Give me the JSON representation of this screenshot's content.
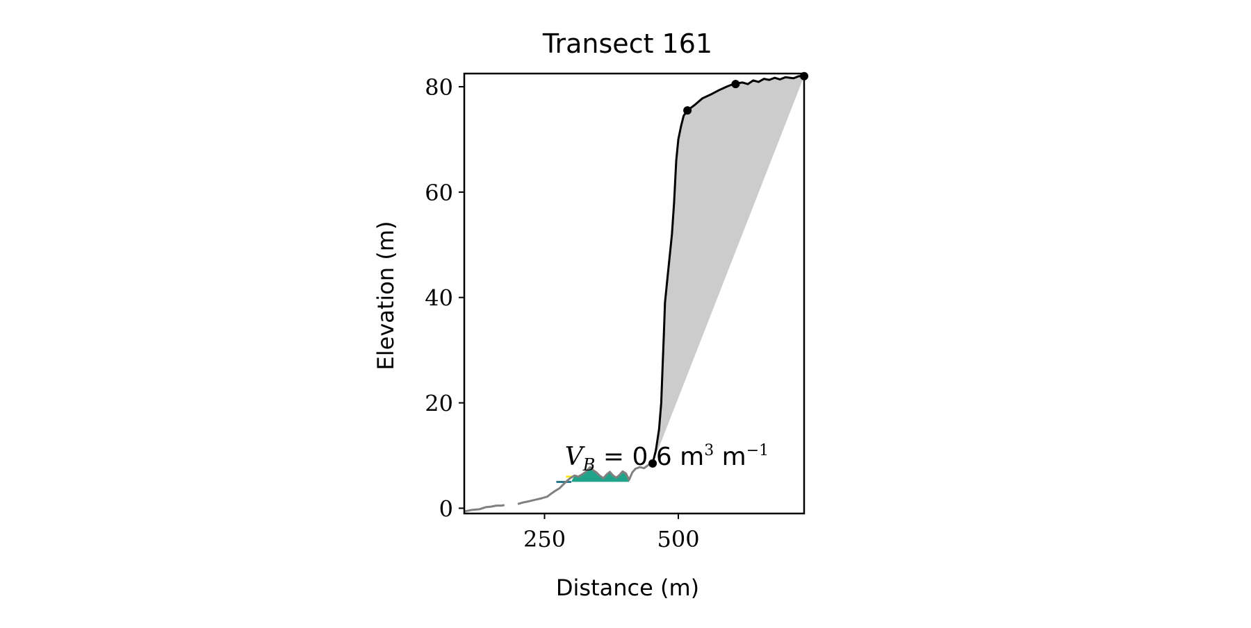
{
  "chart_data": {
    "type": "line",
    "title": "Transect 161",
    "xlabel": "Distance (m)",
    "ylabel": "Elevation (m)",
    "xlim": [
      100,
      735
    ],
    "ylim": [
      -1,
      82.5
    ],
    "xticks": [
      250,
      500
    ],
    "yticks": [
      0,
      20,
      40,
      60,
      80
    ],
    "grid": false,
    "legend": "none",
    "annotation": {
      "prefix": "V",
      "subscript": "B",
      "equals": "=",
      "value": "0.6",
      "unit": "m",
      "sup1": "3",
      "unit2": "m",
      "sup2": "−1",
      "x": 288,
      "y": 8.2
    },
    "series": [
      {
        "role": "profile-gray-low",
        "color": "#808080",
        "segments": [
          [
            [
              100,
              -0.6
            ],
            [
              115,
              -0.3
            ],
            [
              128,
              -0.2
            ],
            [
              140,
              0.2
            ],
            [
              150,
              0.3
            ],
            [
              160,
              0.5
            ],
            [
              170,
              0.5
            ],
            [
              175,
              0.6
            ]
          ],
          [
            [
              200,
              0.8
            ],
            [
              210,
              1.1
            ],
            [
              220,
              1.3
            ],
            [
              232,
              1.6
            ],
            [
              245,
              1.9
            ],
            [
              255,
              2.2
            ],
            [
              263,
              2.8
            ],
            [
              270,
              3.3
            ],
            [
              278,
              3.8
            ],
            [
              285,
              4.5
            ],
            [
              292,
              5.2
            ],
            [
              298,
              5.7
            ],
            [
              306,
              6.2
            ],
            [
              313,
              6.0
            ],
            [
              320,
              6.4
            ],
            [
              328,
              7.0
            ],
            [
              335,
              7.8
            ],
            [
              341,
              7.2
            ],
            [
              347,
              6.8
            ],
            [
              353,
              6.2
            ],
            [
              360,
              5.7
            ],
            [
              366,
              6.4
            ],
            [
              372,
              6.9
            ],
            [
              378,
              6.2
            ],
            [
              384,
              5.8
            ],
            [
              390,
              6.3
            ],
            [
              396,
              7.0
            ],
            [
              402,
              6.6
            ],
            [
              408,
              5.4
            ],
            [
              414,
              6.8
            ],
            [
              420,
              7.5
            ],
            [
              428,
              7.8
            ],
            [
              436,
              7.6
            ],
            [
              444,
              8.2
            ],
            [
              452,
              8.5
            ]
          ]
        ]
      },
      {
        "role": "profile-black-cliff",
        "color": "#000000",
        "points": [
          [
            452,
            8.5
          ],
          [
            458,
            11
          ],
          [
            464,
            15
          ],
          [
            468,
            20
          ],
          [
            471,
            28
          ],
          [
            473,
            33
          ],
          [
            475,
            39
          ],
          [
            480,
            44
          ],
          [
            484,
            48
          ],
          [
            488,
            52
          ],
          [
            492,
            58
          ],
          [
            496,
            66
          ],
          [
            500,
            70
          ],
          [
            505,
            72.5
          ],
          [
            510,
            74.5
          ],
          [
            517,
            75.5
          ],
          [
            530,
            76.5
          ],
          [
            545,
            77.8
          ],
          [
            560,
            78.5
          ],
          [
            575,
            79.3
          ],
          [
            590,
            80.0
          ],
          [
            605,
            80.6
          ],
          [
            620,
            80.8
          ],
          [
            630,
            80.5
          ],
          [
            640,
            81.2
          ],
          [
            650,
            80.9
          ],
          [
            660,
            81.5
          ],
          [
            670,
            81.3
          ],
          [
            680,
            81.7
          ],
          [
            690,
            81.4
          ],
          [
            700,
            81.8
          ],
          [
            715,
            81.6
          ],
          [
            725,
            82.0
          ],
          [
            735,
            82.0
          ]
        ]
      }
    ],
    "markers": [
      [
        452,
        8.5
      ],
      [
        517,
        75.5
      ],
      [
        607,
        80.5
      ],
      [
        735,
        82.0
      ]
    ],
    "volume_fill": {
      "color": "#cccccc",
      "baseline": [
        [
          452,
          8.5
        ],
        [
          735,
          82.0
        ]
      ]
    },
    "bar_fill": {
      "color": "#21a38b",
      "base": 5.0,
      "x_range": [
        300,
        408
      ]
    },
    "threshold_line": {
      "color": "#2a788e",
      "y": 5.0,
      "x_range": [
        272,
        300
      ]
    },
    "yellow_mark": {
      "color": "#fde725",
      "y": 6.0,
      "x_range": [
        290,
        305
      ]
    }
  }
}
